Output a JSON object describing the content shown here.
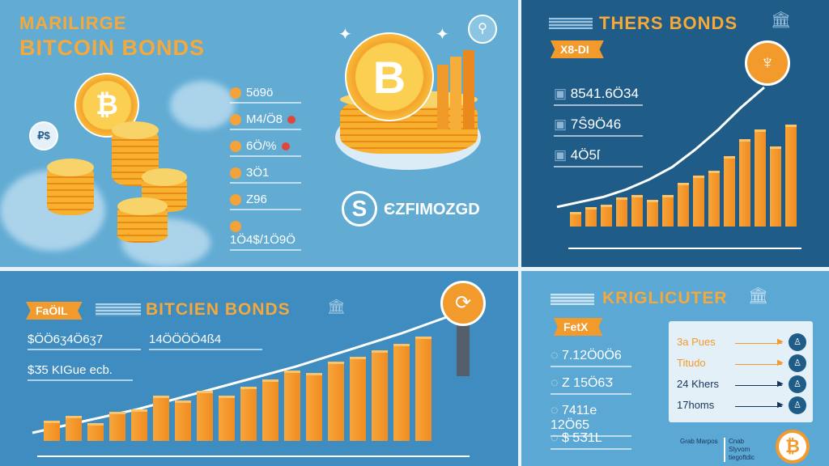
{
  "top_left": {
    "title_line1": "MARILIRGE",
    "title_line2": "BITCOIN BONDS",
    "coin_symbol": "₿",
    "bubble_text": "₽$",
    "stats": [
      "5ö9ö",
      "M4/Ö8",
      "6Ö/%",
      "3Ö1",
      "Z96",
      "1Ö4$/1Ö9Ö"
    ],
    "big_coin_symbol": "B",
    "brand_text": "ЄZFIMOZGD"
  },
  "top_right": {
    "title": "THERS BONDS",
    "ribbon": "X8-DI",
    "stats": [
      "8541.6Ö34",
      "7Ŝ9Ö46",
      "4Ö5ſ"
    ],
    "bar_levels": [
      12,
      16,
      18,
      24,
      26,
      22,
      26,
      36,
      42,
      46,
      58,
      72,
      80,
      66,
      84
    ],
    "line_points": [
      4,
      8,
      12,
      18,
      26,
      36,
      50,
      66,
      84,
      100
    ]
  },
  "bottom_left": {
    "ribbon": "FaÖIL",
    "title": "BITCIEN BONDS",
    "stats": [
      "$ÖÖ6ӡ4Ö6ӡ7",
      "14ÖÖÖÖ4ß4",
      "$Ӡ5 KIGue ecb."
    ],
    "bar_levels": [
      18,
      22,
      16,
      26,
      28,
      40,
      36,
      44,
      40,
      48,
      54,
      62,
      60,
      70,
      74,
      80,
      86,
      92
    ],
    "line_points": [
      0,
      10,
      20,
      32,
      44,
      56,
      70,
      84,
      100
    ]
  },
  "bottom_right": {
    "title": "KRIGLICUTER",
    "ribbon": "FetX",
    "stats": [
      "7.12Ö0Ö6",
      "Z 15Ö6Ӡ",
      "7411e 12Ö65",
      "$ 5Ӡ1L"
    ],
    "legend": [
      {
        "label": "3a Pues",
        "color": "#f39a2c"
      },
      {
        "label": "Titudo",
        "color": "#f39a2c"
      },
      {
        "label": "24 Khers",
        "color": "#16355a"
      },
      {
        "label": "17homs",
        "color": "#16355a"
      }
    ],
    "footnotes": [
      "Grab Marpos",
      "Cnab Slyvom tiegoftdic"
    ]
  },
  "colors": {
    "accent": "#f39a2c",
    "dark_blue": "#1f5c88",
    "light_blue": "#62acd4"
  }
}
